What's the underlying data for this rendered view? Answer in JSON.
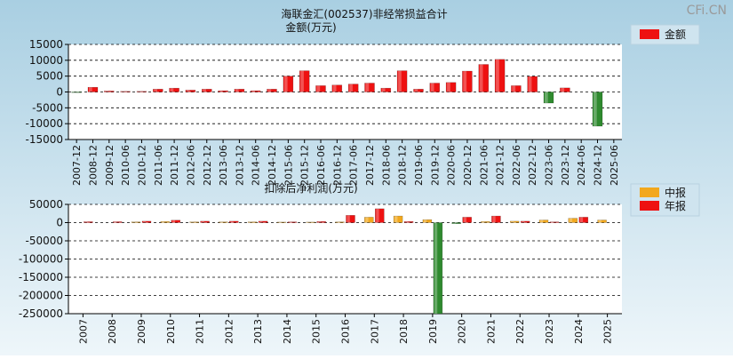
{
  "watermark": "CFi.CN",
  "colors": {
    "background_top": "#a9cfe2",
    "background_bottom": "#eef6fa",
    "annual": "#ee1111",
    "interim": "#f2a81d",
    "negative": "#2f8a2f",
    "legend_box": "#cfe4ef"
  },
  "chart_data": [
    {
      "type": "bar",
      "title": "海联金汇(002537)非经常损益合计",
      "subtitle": "金额(万元)",
      "ylim": [
        -15000,
        15000
      ],
      "yticks": [
        15000,
        10000,
        5000,
        0,
        -5000,
        -10000,
        -15000
      ],
      "grid": true,
      "legend_position": "top-right",
      "legend": [
        "金额"
      ],
      "categories": [
        "2007-12",
        "2008-12",
        "2009-12",
        "2010-06",
        "2010-12",
        "2011-06",
        "2011-12",
        "2012-06",
        "2012-12",
        "2013-06",
        "2013-12",
        "2014-06",
        "2014-12",
        "2015-06",
        "2015-12",
        "2016-06",
        "2016-12",
        "2017-06",
        "2017-12",
        "2018-06",
        "2018-12",
        "2019-06",
        "2019-12",
        "2020-06",
        "2020-12",
        "2021-06",
        "2021-12",
        "2022-06",
        "2022-12",
        "2023-06",
        "2023-12",
        "2024-06",
        "2024-12",
        "2025-06"
      ],
      "series": [
        {
          "name": "金额",
          "values": [
            -200,
            1500,
            300,
            200,
            200,
            900,
            1200,
            600,
            900,
            400,
            900,
            400,
            900,
            5000,
            6700,
            2000,
            2200,
            2500,
            2800,
            1200,
            6700,
            900,
            2800,
            3000,
            6600,
            8700,
            10300,
            2000,
            4900,
            -3500,
            1300,
            0,
            -10800,
            0
          ]
        }
      ]
    },
    {
      "type": "bar",
      "title": "扣除后净利润(万元)",
      "ylim": [
        -250000,
        50000
      ],
      "yticks": [
        50000,
        0,
        -50000,
        -100000,
        -150000,
        -200000,
        -250000
      ],
      "grid": true,
      "legend_position": "top-right",
      "legend": [
        "中报",
        "年报"
      ],
      "categories": [
        "2007",
        "2008",
        "2009",
        "2010",
        "2011",
        "2012",
        "2013",
        "2014",
        "2015",
        "2016",
        "2017",
        "2018",
        "2019",
        "2020",
        "2021",
        "2022",
        "2023",
        "2024",
        "2025"
      ],
      "series": [
        {
          "name": "中报",
          "values": [
            0,
            0,
            2000,
            3000,
            2000,
            2000,
            2000,
            1500,
            1500,
            2000,
            15000,
            18000,
            8000,
            -3000,
            3000,
            4000,
            7000,
            12000,
            7000
          ]
        },
        {
          "name": "年报",
          "values": [
            2500,
            2500,
            4000,
            6500,
            4000,
            4000,
            4000,
            2000,
            3000,
            20000,
            38000,
            3000,
            -250000,
            15000,
            18000,
            4000,
            2000,
            15000,
            null
          ]
        }
      ]
    }
  ]
}
